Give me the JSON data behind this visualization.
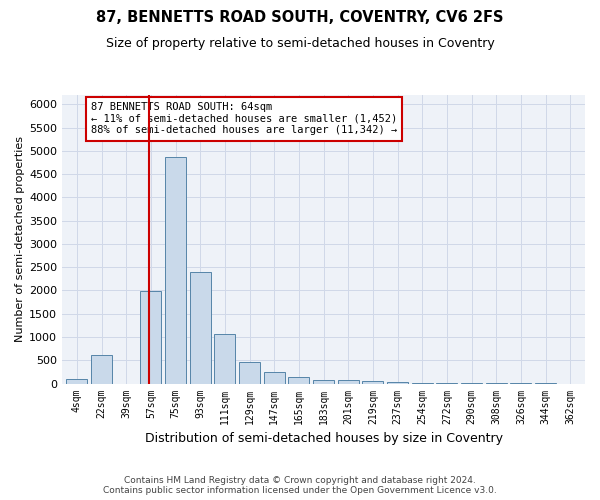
{
  "title": "87, BENNETTS ROAD SOUTH, COVENTRY, CV6 2FS",
  "subtitle": "Size of property relative to semi-detached houses in Coventry",
  "xlabel": "Distribution of semi-detached houses by size in Coventry",
  "ylabel": "Number of semi-detached properties",
  "footer_line1": "Contains HM Land Registry data © Crown copyright and database right 2024.",
  "footer_line2": "Contains public sector information licensed under the Open Government Licence v3.0.",
  "annotation_title": "87 BENNETTS ROAD SOUTH: 64sqm",
  "annotation_line1": "← 11% of semi-detached houses are smaller (1,452)",
  "annotation_line2": "88% of semi-detached houses are larger (11,342) →",
  "bar_color": "#c9d9ea",
  "bar_edge_color": "#5585a8",
  "red_line_color": "#cc0000",
  "grid_color": "#d0d8e8",
  "bg_color": "#eef2f8",
  "categories": [
    "4sqm",
    "22sqm",
    "39sqm",
    "57sqm",
    "75sqm",
    "93sqm",
    "111sqm",
    "129sqm",
    "147sqm",
    "165sqm",
    "183sqm",
    "201sqm",
    "219sqm",
    "237sqm",
    "254sqm",
    "272sqm",
    "290sqm",
    "308sqm",
    "326sqm",
    "344sqm",
    "362sqm"
  ],
  "values": [
    90,
    610,
    0,
    1980,
    4870,
    2390,
    1060,
    460,
    250,
    145,
    80,
    80,
    55,
    30,
    10,
    10,
    5,
    5,
    3,
    3,
    0
  ],
  "bin_left_edges": [
    4,
    22,
    39,
    57,
    75,
    93,
    111,
    129,
    147,
    165,
    183,
    201,
    219,
    237,
    254,
    272,
    290,
    308,
    326,
    344,
    362
  ],
  "bin_width": 18,
  "property_sqm": 64,
  "ylim": [
    0,
    6200
  ],
  "yticks": [
    0,
    500,
    1000,
    1500,
    2000,
    2500,
    3000,
    3500,
    4000,
    4500,
    5000,
    5500,
    6000
  ]
}
